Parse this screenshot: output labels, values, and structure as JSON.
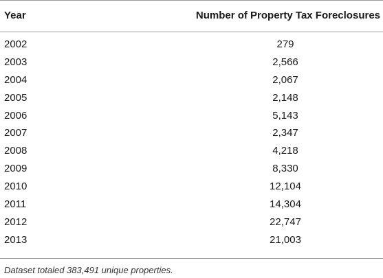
{
  "table": {
    "headers": {
      "year": "Year",
      "count": "Number of Property Tax Foreclosures"
    },
    "rows": [
      {
        "year": "2002",
        "count": "279"
      },
      {
        "year": "2003",
        "count": "2,566"
      },
      {
        "year": "2004",
        "count": "2,067"
      },
      {
        "year": "2005",
        "count": "2,148"
      },
      {
        "year": "2006",
        "count": "5,143"
      },
      {
        "year": "2007",
        "count": "2,347"
      },
      {
        "year": "2008",
        "count": "4,218"
      },
      {
        "year": "2009",
        "count": "8,330"
      },
      {
        "year": "2010",
        "count": "12,104"
      },
      {
        "year": "2011",
        "count": "14,304"
      },
      {
        "year": "2012",
        "count": "22,747"
      },
      {
        "year": "2013",
        "count": "21,003"
      }
    ],
    "footnote": "Dataset totaled 383,491 unique properties."
  }
}
